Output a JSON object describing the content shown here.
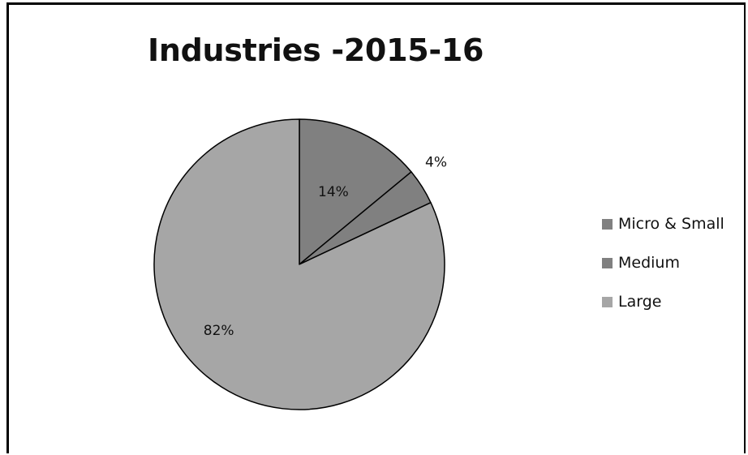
{
  "chart_data": {
    "type": "pie",
    "title": "Industries -2015-16",
    "categories": [
      "Micro & Small",
      "Medium",
      "Large"
    ],
    "values": [
      14,
      4,
      82
    ],
    "labels": [
      "14%",
      "4%",
      "82%"
    ],
    "colors": [
      "#808080",
      "#808080",
      "#a6a6a6"
    ],
    "legend_position": "right"
  }
}
